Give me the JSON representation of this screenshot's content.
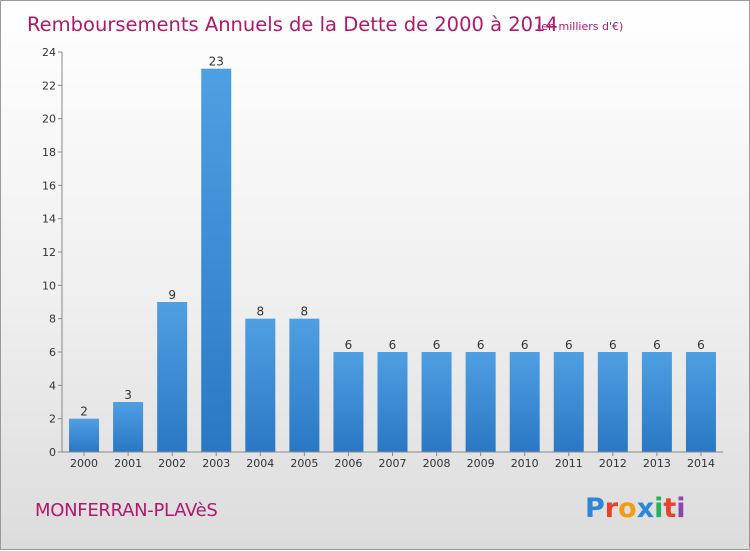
{
  "chart_data": {
    "type": "bar",
    "title": "Remboursements Annuels de la Dette de 2000 à 2014",
    "unit_label": "(en milliers d'€)",
    "categories": [
      "2000",
      "2001",
      "2002",
      "2003",
      "2004",
      "2005",
      "2006",
      "2007",
      "2008",
      "2009",
      "2010",
      "2011",
      "2012",
      "2013",
      "2014"
    ],
    "values": [
      2,
      3,
      9,
      23,
      8,
      8,
      6,
      6,
      6,
      6,
      6,
      6,
      6,
      6,
      6
    ],
    "ylim": [
      0,
      24
    ],
    "yticks": [
      0,
      2,
      4,
      6,
      8,
      10,
      12,
      14,
      16,
      18,
      20,
      22,
      24
    ],
    "grid": false,
    "bar_color": "#4f9fe3",
    "bar_color_dark": "#2a78c4"
  },
  "footer": {
    "town": "MONFERRAN-PLAVèS",
    "logo": "Proxiti",
    "logo_colors": [
      "#2e86d6",
      "#e8412c",
      "#f39c12",
      "#2e86d6",
      "#27ae60",
      "#e8412c",
      "#8e44ad"
    ]
  },
  "colors": {
    "accent": "#b0196b"
  }
}
